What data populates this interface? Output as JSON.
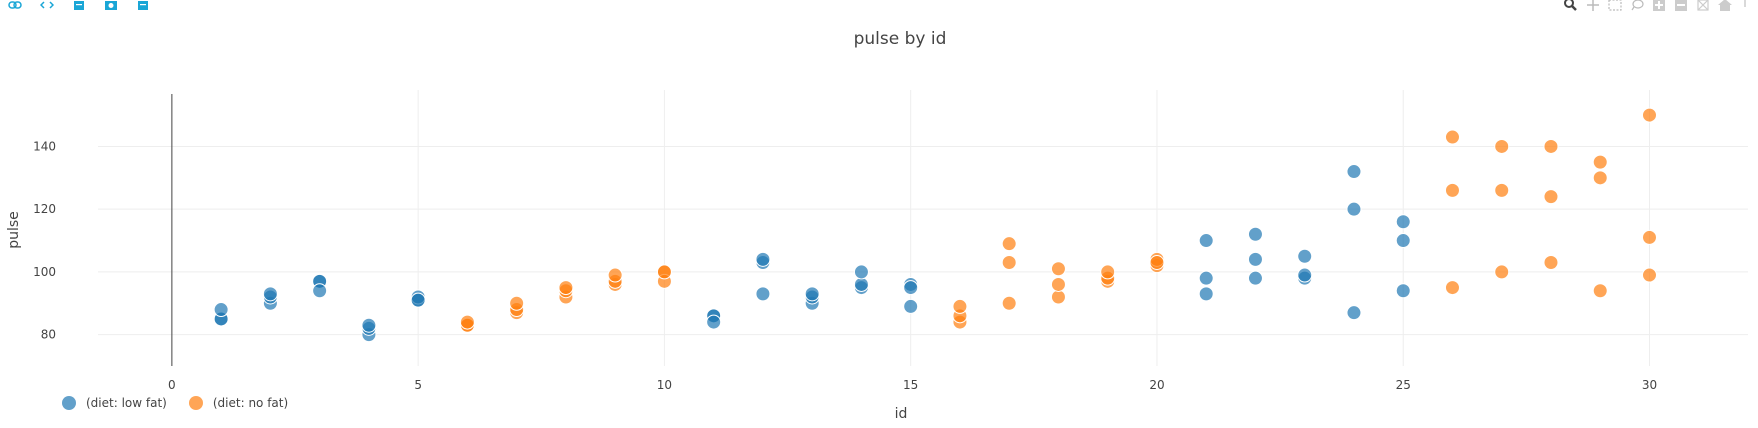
{
  "toolbar": {
    "left_icons": [
      "link-icon",
      "code-icon",
      "embed-icon",
      "camera-icon",
      "export-icon"
    ],
    "right_icons": [
      "zoom-icon",
      "pan-icon",
      "box-select-icon",
      "lasso-select-icon",
      "zoom-in-icon",
      "zoom-out-icon",
      "autoscale-icon",
      "home-icon",
      "more-icon"
    ]
  },
  "colors": {
    "low_fat": "#1f77b4",
    "no_fat": "#ff7f0e",
    "grid": "#eeeeee",
    "axis_text": "#444444"
  },
  "chart_data": {
    "type": "scatter",
    "title": "pulse by id",
    "xlabel": "id",
    "ylabel": "pulse",
    "xlim": [
      -1.5,
      32
    ],
    "ylim": [
      70,
      158
    ],
    "x_ticks": [
      0,
      5,
      10,
      15,
      20,
      25,
      30
    ],
    "y_ticks": [
      80,
      100,
      120,
      140
    ],
    "grid": true,
    "legend_position": "bottom-left",
    "series": [
      {
        "name": "(diet: low fat)",
        "color": "#1f77b4",
        "points": [
          [
            1,
            85
          ],
          [
            1,
            85
          ],
          [
            1,
            88
          ],
          [
            2,
            90
          ],
          [
            2,
            92
          ],
          [
            2,
            93
          ],
          [
            3,
            97
          ],
          [
            3,
            97
          ],
          [
            3,
            94
          ],
          [
            4,
            80
          ],
          [
            4,
            82
          ],
          [
            4,
            83
          ],
          [
            5,
            91
          ],
          [
            5,
            92
          ],
          [
            5,
            91
          ],
          [
            11,
            86
          ],
          [
            11,
            86
          ],
          [
            11,
            84
          ],
          [
            12,
            103
          ],
          [
            12,
            104
          ],
          [
            12,
            93
          ],
          [
            13,
            90
          ],
          [
            13,
            92
          ],
          [
            13,
            93
          ],
          [
            14,
            95
          ],
          [
            14,
            96
          ],
          [
            14,
            100
          ],
          [
            15,
            89
          ],
          [
            15,
            96
          ],
          [
            15,
            95
          ],
          [
            21,
            93
          ],
          [
            21,
            98
          ],
          [
            21,
            110
          ],
          [
            22,
            98
          ],
          [
            22,
            104
          ],
          [
            22,
            112
          ],
          [
            23,
            98
          ],
          [
            23,
            99
          ],
          [
            23,
            105
          ],
          [
            24,
            87
          ],
          [
            24,
            132
          ],
          [
            24,
            120
          ],
          [
            25,
            94
          ],
          [
            25,
            110
          ],
          [
            25,
            116
          ]
        ]
      },
      {
        "name": "(diet: no fat)",
        "color": "#ff7f0e",
        "points": [
          [
            6,
            83
          ],
          [
            6,
            83
          ],
          [
            6,
            84
          ],
          [
            7,
            87
          ],
          [
            7,
            88
          ],
          [
            7,
            90
          ],
          [
            8,
            92
          ],
          [
            8,
            94
          ],
          [
            8,
            95
          ],
          [
            9,
            96
          ],
          [
            9,
            97
          ],
          [
            9,
            99
          ],
          [
            10,
            100
          ],
          [
            10,
            97
          ],
          [
            10,
            100
          ],
          [
            16,
            84
          ],
          [
            16,
            86
          ],
          [
            16,
            89
          ],
          [
            17,
            103
          ],
          [
            17,
            109
          ],
          [
            17,
            90
          ],
          [
            18,
            92
          ],
          [
            18,
            96
          ],
          [
            18,
            101
          ],
          [
            19,
            97
          ],
          [
            19,
            98
          ],
          [
            19,
            100
          ],
          [
            20,
            102
          ],
          [
            20,
            104
          ],
          [
            20,
            103
          ],
          [
            26,
            95
          ],
          [
            26,
            126
          ],
          [
            26,
            143
          ],
          [
            27,
            100
          ],
          [
            27,
            126
          ],
          [
            27,
            140
          ],
          [
            28,
            103
          ],
          [
            28,
            124
          ],
          [
            28,
            140
          ],
          [
            29,
            94
          ],
          [
            29,
            135
          ],
          [
            29,
            130
          ],
          [
            30,
            99
          ],
          [
            30,
            111
          ],
          [
            30,
            150
          ]
        ]
      }
    ]
  }
}
